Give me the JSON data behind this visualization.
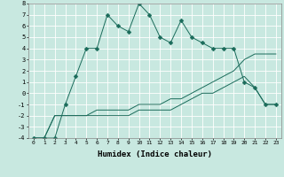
{
  "xlabel": "Humidex (Indice chaleur)",
  "background_color": "#c8e8e0",
  "line_color": "#1a6b5a",
  "grid_color": "#ffffff",
  "xlim": [
    -0.5,
    23.5
  ],
  "ylim": [
    -4,
    8
  ],
  "x": [
    0,
    1,
    2,
    3,
    4,
    5,
    6,
    7,
    8,
    9,
    10,
    11,
    12,
    13,
    14,
    15,
    16,
    17,
    18,
    19,
    20,
    21,
    22,
    23
  ],
  "line1": [
    -4,
    -4,
    -4,
    -1,
    1.5,
    4,
    4,
    7,
    6,
    5.5,
    8,
    7,
    5,
    4.5,
    6.5,
    5,
    4.5,
    4,
    4,
    4,
    1,
    0.5,
    -1,
    -1
  ],
  "line2": [
    -4,
    -4,
    -2,
    -2,
    -2,
    -2,
    -1.5,
    -1.5,
    -1.5,
    -1.5,
    -1,
    -1,
    -1,
    -0.5,
    -0.5,
    0,
    0.5,
    1,
    1.5,
    2,
    3,
    3.5,
    3.5,
    3.5
  ],
  "line3": [
    -4,
    -4,
    -2,
    -2,
    -2,
    -2,
    -2,
    -2,
    -2,
    -2,
    -1.5,
    -1.5,
    -1.5,
    -1.5,
    -1,
    -0.5,
    0,
    0,
    0.5,
    1,
    1.5,
    0.5,
    -1,
    -1
  ]
}
